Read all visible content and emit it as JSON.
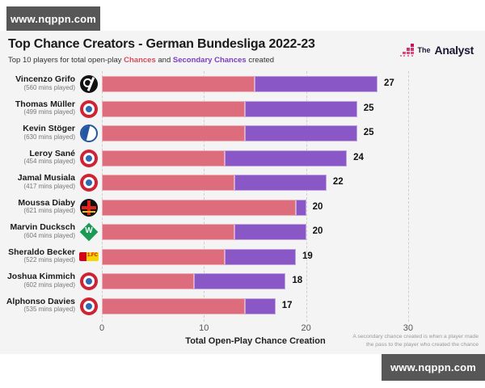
{
  "watermark_top": {
    "text": "www.nqppn.com"
  },
  "watermark_bottom": {
    "text": "www.nqppn.com"
  },
  "header": {
    "title": "Top Chance Creators - German Bundesliga 2022-23",
    "subtitle_prefix": "Top 10 players for total open-play ",
    "subtitle_chances": "Chances",
    "subtitle_and": " and ",
    "subtitle_secondary": "Secondary Chances",
    "subtitle_suffix": " created"
  },
  "brand": {
    "the": "The",
    "analyst": "Analyst"
  },
  "chart_data": {
    "type": "bar",
    "orientation": "horizontal",
    "stacked": true,
    "title": "Top Chance Creators - German Bundesliga 2022-23",
    "xlabel": "Total Open-Play Chance Creation",
    "x_ticks": [
      0,
      10,
      20,
      30
    ],
    "xlim": [
      0,
      30
    ],
    "grid": "dashed-vertical",
    "legend": [
      {
        "name": "Chances",
        "color": "#dd6d7d"
      },
      {
        "name": "Secondary Chances",
        "color": "#8a57c6"
      }
    ],
    "players": [
      {
        "name": "Vincenzo Grifo",
        "mins": "(560 mins played)",
        "club": "freiburg",
        "chances": 15,
        "secondary_chances": 12,
        "total": 27
      },
      {
        "name": "Thomas Müller",
        "mins": "(499 mins played)",
        "club": "bayern",
        "chances": 14,
        "secondary_chances": 11,
        "total": 25
      },
      {
        "name": "Kevin Stöger",
        "mins": "(630 mins played)",
        "club": "bochum",
        "chances": 14,
        "secondary_chances": 11,
        "total": 25
      },
      {
        "name": "Leroy Sané",
        "mins": "(454 mins played)",
        "club": "bayern",
        "chances": 12,
        "secondary_chances": 12,
        "total": 24
      },
      {
        "name": "Jamal Musiala",
        "mins": "(417 mins played)",
        "club": "bayern",
        "chances": 13,
        "secondary_chances": 9,
        "total": 22
      },
      {
        "name": "Moussa Diaby",
        "mins": "(621 mins played)",
        "club": "leverkusen",
        "chances": 19,
        "secondary_chances": 1,
        "total": 20
      },
      {
        "name": "Marvin Ducksch",
        "mins": "(604 mins played)",
        "club": "werder",
        "chances": 13,
        "secondary_chances": 7,
        "total": 20
      },
      {
        "name": "Sheraldo Becker",
        "mins": "(522 mins played)",
        "club": "union",
        "chances": 12,
        "secondary_chances": 7,
        "total": 19
      },
      {
        "name": "Joshua Kimmich",
        "mins": "(602 mins played)",
        "club": "bayern",
        "chances": 9,
        "secondary_chances": 9,
        "total": 18
      },
      {
        "name": "Alphonso Davies",
        "mins": "(535 mins played)",
        "club": "bayern",
        "chances": 14,
        "secondary_chances": 3,
        "total": 17
      }
    ]
  },
  "footnote": {
    "line1": "A secondary chance created is when a player made",
    "line2": "the pass to the player who created the chance"
  },
  "colors": {
    "chances_bar": "#dd6d7d",
    "secondary_bar": "#8a57c6",
    "chances_text": "#d94a5e",
    "secondary_text": "#7b3fc4",
    "panel_bg": "#f4f4f4",
    "watermark_bg": "#575757",
    "title_text": "#1a1a1a"
  }
}
